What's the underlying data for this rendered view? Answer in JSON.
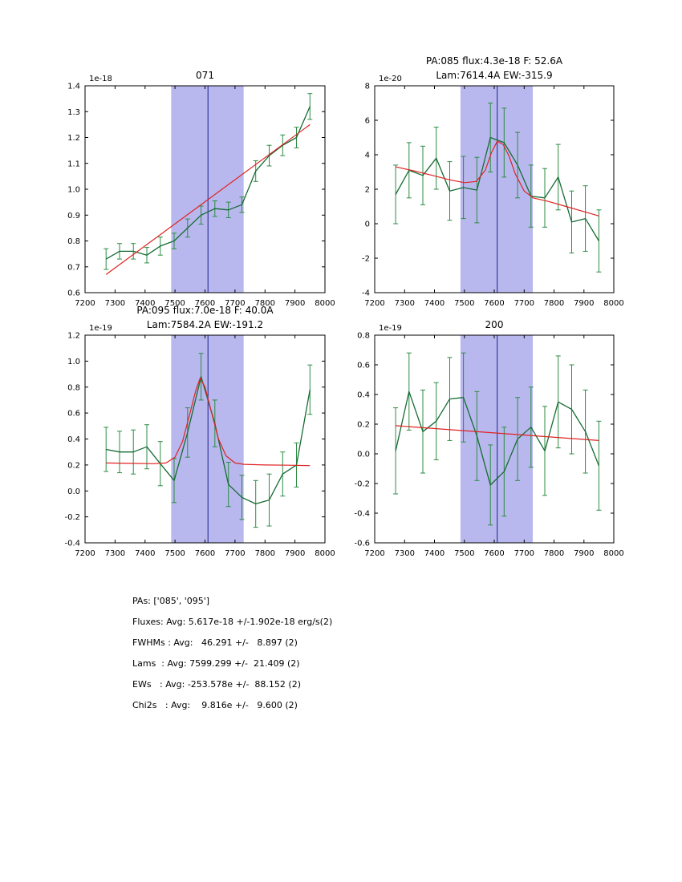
{
  "colors": {
    "data": "#156b33",
    "error": "#2d8b43",
    "fit": "#e02222",
    "band": "#b8b8ee",
    "vline": "#1f1f8f",
    "axis": "#000000"
  },
  "chart_data": [
    {
      "type": "line",
      "title_lines": [
        "071"
      ],
      "offset": "1e-18",
      "xlim": [
        7200,
        8000
      ],
      "ylim": [
        0.6,
        1.4
      ],
      "xticks": {
        "values": [
          7200,
          7300,
          7400,
          7500,
          7600,
          7700,
          7800,
          7900,
          8000
        ],
        "labels": [
          "7200",
          "7300",
          "7400",
          "7500",
          "7600",
          "7700",
          "7800",
          "7900",
          "8000"
        ]
      },
      "yticks": {
        "values": [
          0.6,
          0.7,
          0.8,
          0.9,
          1.0,
          1.1,
          1.2,
          1.3,
          1.4
        ],
        "labels": [
          "0.6",
          "0.7",
          "0.8",
          "0.9",
          "1.0",
          "1.1",
          "1.2",
          "1.3",
          "1.4"
        ]
      },
      "band": [
        7487,
        7729
      ],
      "vline": 7610,
      "series": {
        "x": [
          7270,
          7315,
          7361,
          7406,
          7451,
          7497,
          7542,
          7587,
          7633,
          7678,
          7723,
          7769,
          7814,
          7859,
          7905,
          7950
        ],
        "y": [
          0.73,
          0.76,
          0.76,
          0.745,
          0.78,
          0.8,
          0.85,
          0.9,
          0.925,
          0.92,
          0.94,
          1.07,
          1.13,
          1.17,
          1.2,
          1.32
        ],
        "yerr": [
          0.04,
          0.03,
          0.03,
          0.03,
          0.035,
          0.03,
          0.035,
          0.035,
          0.03,
          0.03,
          0.03,
          0.04,
          0.04,
          0.04,
          0.04,
          0.05
        ]
      },
      "fit": {
        "x": [
          7270,
          7950
        ],
        "y": [
          0.67,
          1.25
        ]
      }
    },
    {
      "type": "line",
      "title_lines": [
        "PA:085 flux:4.3e-18 F: 52.6A",
        "Lam:7614.4A EW:-315.9"
      ],
      "offset": "1e-20",
      "xlim": [
        7200,
        8000
      ],
      "ylim": [
        -4,
        8
      ],
      "xticks": {
        "values": [
          7200,
          7300,
          7400,
          7500,
          7600,
          7700,
          7800,
          7900,
          8000
        ],
        "labels": [
          "7200",
          "7300",
          "7400",
          "7500",
          "7600",
          "7700",
          "7800",
          "7900",
          "8000"
        ]
      },
      "yticks": {
        "values": [
          -4,
          -2,
          0,
          2,
          4,
          6,
          8
        ],
        "labels": [
          "-4",
          "-2",
          "0",
          "2",
          "4",
          "6",
          "8"
        ]
      },
      "band": [
        7487,
        7729
      ],
      "vline": 7610,
      "series": {
        "x": [
          7270,
          7315,
          7361,
          7406,
          7451,
          7497,
          7542,
          7587,
          7633,
          7678,
          7723,
          7769,
          7814,
          7859,
          7905,
          7950
        ],
        "y": [
          1.7,
          3.1,
          2.8,
          3.8,
          1.9,
          2.1,
          1.95,
          5.0,
          4.7,
          3.4,
          1.6,
          1.5,
          2.7,
          0.1,
          0.3,
          -1.0
        ],
        "yerr": [
          1.7,
          1.6,
          1.7,
          1.8,
          1.7,
          1.8,
          1.9,
          2.0,
          2.0,
          1.9,
          1.8,
          1.7,
          1.9,
          1.8,
          1.9,
          1.8
        ]
      },
      "fit": {
        "x": [
          7270,
          7330,
          7390,
          7450,
          7500,
          7540,
          7570,
          7590,
          7610,
          7630,
          7650,
          7670,
          7700,
          7730,
          7780,
          7840,
          7900,
          7950
        ],
        "y": [
          3.3,
          3.07,
          2.82,
          2.55,
          2.38,
          2.45,
          3.1,
          4.1,
          4.78,
          4.6,
          3.9,
          2.9,
          1.9,
          1.5,
          1.3,
          1.0,
          0.7,
          0.45
        ]
      }
    },
    {
      "type": "line",
      "title_lines": [
        "PA:095 flux:7.0e-18 F: 40.0A",
        "Lam:7584.2A EW:-191.2"
      ],
      "offset": "1e-19",
      "xlim": [
        7200,
        8000
      ],
      "ylim": [
        -0.4,
        1.2
      ],
      "xticks": {
        "values": [
          7200,
          7300,
          7400,
          7500,
          7600,
          7700,
          7800,
          7900,
          8000
        ],
        "labels": [
          "7200",
          "7300",
          "7400",
          "7500",
          "7600",
          "7700",
          "7800",
          "7900",
          "8000"
        ]
      },
      "yticks": {
        "values": [
          -0.4,
          -0.2,
          0.0,
          0.2,
          0.4,
          0.6,
          0.8,
          1.0,
          1.2
        ],
        "labels": [
          "-0.4",
          "-0.2",
          "0.0",
          "0.2",
          "0.4",
          "0.6",
          "0.8",
          "1.0",
          "1.2"
        ]
      },
      "band": [
        7487,
        7729
      ],
      "vline": 7610,
      "series": {
        "x": [
          7270,
          7315,
          7361,
          7406,
          7451,
          7497,
          7542,
          7587,
          7633,
          7678,
          7723,
          7769,
          7814,
          7859,
          7905,
          7950
        ],
        "y": [
          0.32,
          0.3,
          0.3,
          0.34,
          0.21,
          0.08,
          0.45,
          0.88,
          0.52,
          0.05,
          -0.05,
          -0.1,
          -0.07,
          0.13,
          0.2,
          0.78
        ],
        "yerr": [
          0.17,
          0.16,
          0.17,
          0.17,
          0.17,
          0.17,
          0.19,
          0.18,
          0.18,
          0.17,
          0.17,
          0.18,
          0.2,
          0.17,
          0.17,
          0.19
        ]
      },
      "fit": {
        "x": [
          7270,
          7350,
          7430,
          7470,
          7500,
          7525,
          7550,
          7570,
          7584,
          7600,
          7620,
          7645,
          7670,
          7700,
          7730,
          7800,
          7880,
          7950
        ],
        "y": [
          0.215,
          0.212,
          0.21,
          0.215,
          0.26,
          0.38,
          0.6,
          0.78,
          0.87,
          0.8,
          0.62,
          0.4,
          0.27,
          0.215,
          0.205,
          0.2,
          0.198,
          0.195
        ]
      }
    },
    {
      "type": "line",
      "title_lines": [
        "200"
      ],
      "offset": "1e-19",
      "xlim": [
        7200,
        8000
      ],
      "ylim": [
        -0.6,
        0.8
      ],
      "xticks": {
        "values": [
          7200,
          7300,
          7400,
          7500,
          7600,
          7700,
          7800,
          7900,
          8000
        ],
        "labels": [
          "7200",
          "7300",
          "7400",
          "7500",
          "7600",
          "7700",
          "7800",
          "7900",
          "8000"
        ]
      },
      "yticks": {
        "values": [
          -0.6,
          -0.4,
          -0.2,
          0.0,
          0.2,
          0.4,
          0.6,
          0.8
        ],
        "labels": [
          "-0.6",
          "-0.4",
          "-0.2",
          "0.0",
          "0.2",
          "0.4",
          "0.6",
          "0.8"
        ]
      },
      "band": [
        7487,
        7729
      ],
      "vline": 7610,
      "series": {
        "x": [
          7270,
          7315,
          7361,
          7406,
          7451,
          7497,
          7542,
          7587,
          7633,
          7678,
          7723,
          7769,
          7814,
          7859,
          7905,
          7950
        ],
        "y": [
          0.02,
          0.42,
          0.15,
          0.22,
          0.37,
          0.38,
          0.12,
          -0.21,
          -0.12,
          0.1,
          0.18,
          0.02,
          0.35,
          0.3,
          0.15,
          -0.08
        ],
        "yerr": [
          0.29,
          0.26,
          0.28,
          0.26,
          0.28,
          0.3,
          0.3,
          0.27,
          0.3,
          0.28,
          0.27,
          0.3,
          0.31,
          0.3,
          0.28,
          0.3
        ]
      },
      "fit": {
        "x": [
          7270,
          7950
        ],
        "y": [
          0.19,
          0.09
        ]
      }
    }
  ],
  "summary": {
    "lines": [
      "PAs: ['085', '095']",
      "Fluxes: Avg: 5.617e-18 +/-1.902e-18 erg/s(2)",
      "FWHMs : Avg:   46.291 +/-   8.897 (2)",
      "Lams  : Avg: 7599.299 +/-  21.409 (2)",
      "EWs   : Avg: -253.578e +/-  88.152 (2)",
      "Chi2s   : Avg:    9.816e +/-   9.600 (2)"
    ]
  }
}
